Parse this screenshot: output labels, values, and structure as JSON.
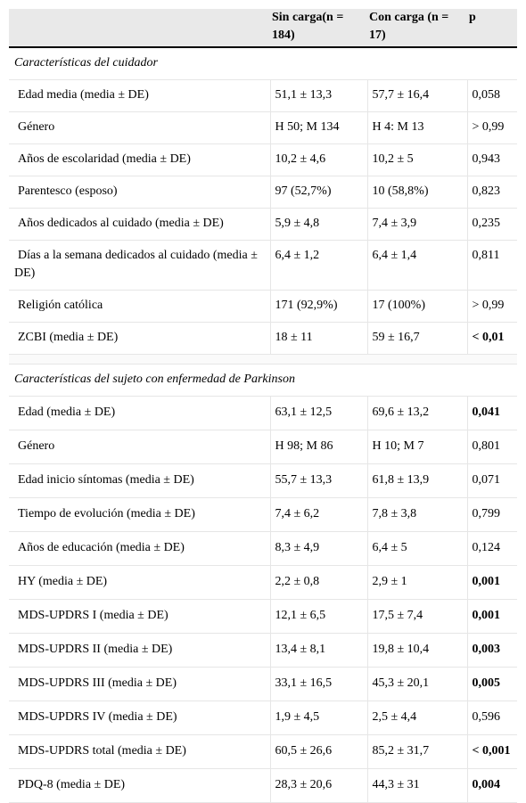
{
  "table": {
    "columns": [
      "Sin carga(n = 184)",
      "Con carga (n = 17)",
      "p"
    ],
    "sections": [
      {
        "title": "Características del cuidador",
        "rows": [
          {
            "cells": [
              "Edad media (media ± DE)",
              "51,1 ± 13,3",
              "57,7 ± 16,4",
              "0,058"
            ],
            "p_bold": false
          },
          {
            "cells": [
              "Género",
              "H 50; M 134",
              "H 4: M 13",
              "> 0,99"
            ],
            "p_bold": false
          },
          {
            "cells": [
              "Años de escolaridad (media ± DE)",
              "10,2 ± 4,6",
              "10,2 ± 5",
              "0,943"
            ],
            "p_bold": false
          },
          {
            "cells": [
              "Parentesco (esposo)",
              "97 (52,7%)",
              "10 (58,8%)",
              "0,823"
            ],
            "p_bold": false
          },
          {
            "cells": [
              "Años dedicados al cuidado (media ± DE)",
              "5,9 ± 4,8",
              "7,4 ± 3,9",
              "0,235"
            ],
            "p_bold": false
          },
          {
            "cells": [
              "Días a la semana dedicados al cuidado (media ± DE)",
              "6,4 ± 1,2",
              "6,4 ± 1,4",
              "0,811"
            ],
            "p_bold": false
          },
          {
            "cells": [
              "Religión católica",
              "171 (92,9%)",
              "17 (100%)",
              "> 0,99"
            ],
            "p_bold": false
          },
          {
            "cells": [
              "ZCBI (media ± DE)",
              "18 ± 11",
              "59 ± 16,7",
              "< 0,01"
            ],
            "p_bold": true
          }
        ]
      },
      {
        "title": "Características del sujeto con enfermedad de Parkinson",
        "rows": [
          {
            "cells": [
              "Edad (media ± DE)",
              "63,1 ± 12,5",
              "69,6 ± 13,2",
              "0,041"
            ],
            "p_bold": true
          },
          {
            "cells": [
              "Género",
              "H 98; M 86",
              "H 10; M 7",
              "0,801"
            ],
            "p_bold": false
          },
          {
            "cells": [
              "Edad inicio síntomas (media ± DE)",
              "55,7 ± 13,3",
              "61,8 ± 13,9",
              "0,071"
            ],
            "p_bold": false
          },
          {
            "cells": [
              "Tiempo de evolución (media ± DE)",
              "7,4 ± 6,2",
              "7,8 ± 3,8",
              "0,799"
            ],
            "p_bold": false
          },
          {
            "cells": [
              "Años de educación (media ± DE)",
              "8,3 ± 4,9",
              "6,4 ± 5",
              "0,124"
            ],
            "p_bold": false
          },
          {
            "cells": [
              "HY (media ± DE)",
              "2,2 ± 0,8",
              "2,9 ± 1",
              "0,001"
            ],
            "p_bold": true
          },
          {
            "cells": [
              "MDS-UPDRS I (media ± DE)",
              "12,1 ± 6,5",
              "17,5 ± 7,4",
              "0,001"
            ],
            "p_bold": true
          },
          {
            "cells": [
              "MDS-UPDRS II (media ± DE)",
              "13,4 ± 8,1",
              "19,8 ± 10,4",
              "0,003"
            ],
            "p_bold": true
          },
          {
            "cells": [
              "MDS-UPDRS III (media ± DE)",
              "33,1 ± 16,5",
              "45,3 ± 20,1",
              "0,005"
            ],
            "p_bold": true
          },
          {
            "cells": [
              "MDS-UPDRS IV (media ± DE)",
              "1,9 ± 4,5",
              "2,5 ± 4,4",
              "0,596"
            ],
            "p_bold": false
          },
          {
            "cells": [
              "MDS-UPDRS total (media ± DE)",
              "60,5 ± 26,6",
              "85,2 ± 31,7",
              "< 0,001"
            ],
            "p_bold": true
          },
          {
            "cells": [
              "PDQ-8 (media ± DE)",
              "28,3 ± 20,6",
              "44,3 ± 31",
              "0,004"
            ],
            "p_bold": true
          }
        ]
      }
    ]
  }
}
